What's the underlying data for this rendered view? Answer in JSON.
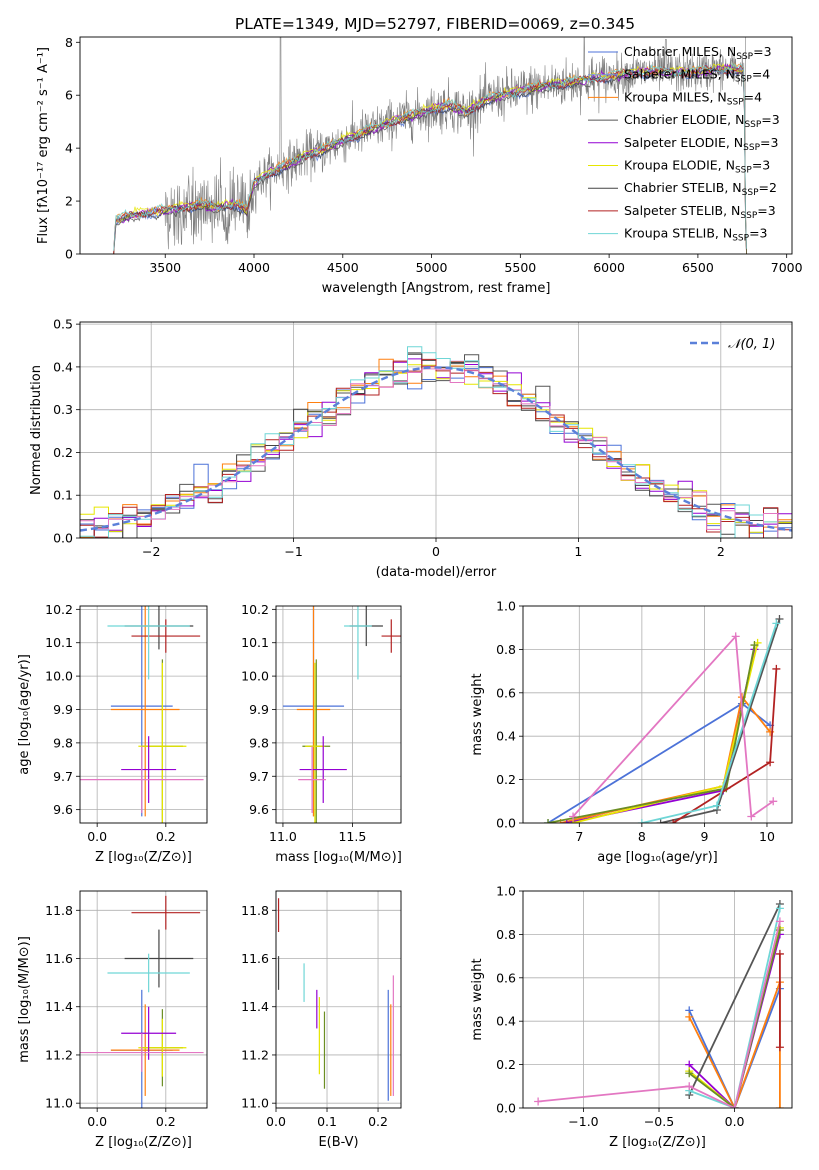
{
  "title": "PLATE=1349, MJD=52797, FIBERID=0069, z=0.345",
  "colors": {
    "chabrier_miles": "#4c72d8",
    "salpeter_miles": "#7a9ad6",
    "kroupa_miles": "#ff7f0e",
    "chabrier_elodie": "#555555",
    "salpeter_elodie": "#9400d3",
    "kroupa_elodie": "#e6e600",
    "chabrier_stelib": "#444444",
    "salpeter_stelib": "#b22222",
    "kroupa_stelib": "#6fd6d6",
    "pink": "#e377c2",
    "green": "#6b8e23",
    "orange_light": "#ffb84d",
    "data": "#808080",
    "normal": "#5b80d9"
  },
  "chart_data": [
    {
      "id": "spectrum",
      "type": "line",
      "xlabel": "wavelength [Angstrom, rest frame]",
      "ylabel": "Flux [fλ10⁻¹⁷ erg cm⁻² s⁻¹ A⁻¹]",
      "xlim": [
        3020,
        7030
      ],
      "ylim": [
        0,
        8.2
      ],
      "xticks": [
        3500,
        4000,
        4500,
        5000,
        5500,
        6000,
        6500,
        7000
      ],
      "yticks": [
        0,
        2,
        4,
        6,
        8
      ],
      "legend": [
        {
          "label": "Chabrier MILES, N",
          "sub": "SSP",
          "tail": "=3",
          "color": "#4c72d8"
        },
        {
          "label": "Salpeter MILES, N",
          "sub": "SSP",
          "tail": "=4",
          "color": "#7a9ad6"
        },
        {
          "label": "Kroupa MILES, N",
          "sub": "SSP",
          "tail": "=4",
          "color": "#ff7f0e"
        },
        {
          "label": "Chabrier ELODIE, N",
          "sub": "SSP",
          "tail": "=3",
          "color": "#555555"
        },
        {
          "label": "Salpeter ELODIE, N",
          "sub": "SSP",
          "tail": "=3",
          "color": "#9400d3"
        },
        {
          "label": "Kroupa ELODIE, N",
          "sub": "SSP",
          "tail": "=3",
          "color": "#e6e600"
        },
        {
          "label": "Chabrier STELIB, N",
          "sub": "SSP",
          "tail": "=2",
          "color": "#444444"
        },
        {
          "label": "Salpeter STELIB, N",
          "sub": "SSP",
          "tail": "=3",
          "color": "#b22222"
        },
        {
          "label": "Kroupa STELIB, N",
          "sub": "SSP",
          "tail": "=3",
          "color": "#6fd6d6"
        }
      ],
      "legend_position": "upper right",
      "continuum": [
        [
          3210,
          0
        ],
        [
          3220,
          1.25
        ],
        [
          3300,
          1.45
        ],
        [
          3400,
          1.55
        ],
        [
          3500,
          1.65
        ],
        [
          3600,
          1.75
        ],
        [
          3700,
          1.85
        ],
        [
          3800,
          1.75
        ],
        [
          3900,
          1.9
        ],
        [
          3960,
          1.6
        ],
        [
          4000,
          2.7
        ],
        [
          4100,
          3.1
        ],
        [
          4200,
          3.4
        ],
        [
          4300,
          3.75
        ],
        [
          4400,
          3.95
        ],
        [
          4500,
          4.3
        ],
        [
          4600,
          4.55
        ],
        [
          4700,
          4.8
        ],
        [
          4800,
          5.05
        ],
        [
          4900,
          5.25
        ],
        [
          5000,
          5.45
        ],
        [
          5100,
          5.6
        ],
        [
          5200,
          5.35
        ],
        [
          5300,
          5.8
        ],
        [
          5400,
          6.0
        ],
        [
          5500,
          6.15
        ],
        [
          5600,
          6.3
        ],
        [
          5700,
          6.4
        ],
        [
          5800,
          6.5
        ],
        [
          5900,
          6.6
        ],
        [
          6000,
          6.7
        ],
        [
          6100,
          6.8
        ],
        [
          6200,
          6.85
        ],
        [
          6300,
          6.9
        ],
        [
          6400,
          6.85
        ],
        [
          6500,
          6.9
        ],
        [
          6600,
          6.95
        ],
        [
          6700,
          7.0
        ],
        [
          6760,
          6.9
        ],
        [
          6770,
          0
        ]
      ]
    },
    {
      "id": "residuals",
      "type": "histogram",
      "xlabel": "(data-model)/error",
      "ylabel": "Normed distribution",
      "xlim": [
        -2.5,
        2.5
      ],
      "ylim": [
        0,
        0.505
      ],
      "xticks": [
        -2,
        -1,
        0,
        1,
        2
      ],
      "yticks": [
        0.0,
        0.1,
        0.2,
        0.3,
        0.4,
        0.5
      ],
      "bin_width": 0.1,
      "legend": [
        {
          "label": "𝒩(0, 1)",
          "color": "#5b80d9"
        }
      ],
      "legend_position": "upper right"
    },
    {
      "id": "age_vs_z",
      "type": "scatter",
      "xlabel": "Z [log₁₀(Z/Z⊙)]",
      "ylabel": "age  [log₁₀(age/yr)]",
      "xlim": [
        -0.05,
        0.32
      ],
      "ylim": [
        9.56,
        10.21
      ],
      "xticks": [
        0.0,
        0.2
      ],
      "yticks": [
        9.6,
        9.7,
        9.8,
        9.9,
        10.0,
        10.1,
        10.2
      ],
      "points": [
        {
          "x": 0.13,
          "y": 9.91,
          "xerr": 0.09,
          "yerr": 0.33,
          "color": "#4c72d8"
        },
        {
          "x": 0.14,
          "y": 9.9,
          "xerr": 0.1,
          "yerr": 0.32,
          "color": "#ff7f0e"
        },
        {
          "x": 0.19,
          "y": 9.79,
          "xerr": 0.06,
          "yerr": 0.26,
          "color": "#6b8e23"
        },
        {
          "x": 0.19,
          "y": 9.79,
          "xerr": 0.07,
          "yerr": 0.25,
          "color": "#e6e600"
        },
        {
          "x": 0.15,
          "y": 9.72,
          "xerr": 0.08,
          "yerr": 0.1,
          "color": "#9400d3"
        },
        {
          "x": 0.13,
          "y": 9.69,
          "xerr": 0.18,
          "yerr": 0.1,
          "color": "#e377c2"
        },
        {
          "x": 0.18,
          "y": 10.15,
          "xerr": 0.1,
          "yerr": 0.07,
          "color": "#444444"
        },
        {
          "x": 0.2,
          "y": 10.12,
          "xerr": 0.1,
          "yerr": 0.05,
          "color": "#b22222"
        },
        {
          "x": 0.15,
          "y": 10.15,
          "xerr": 0.12,
          "yerr": 0.16,
          "color": "#6fd6d6"
        }
      ]
    },
    {
      "id": "age_vs_mass",
      "type": "scatter",
      "xlabel": "mass [log₁₀(M/M⊙)]",
      "ylabel": "",
      "xlim": [
        10.95,
        11.85
      ],
      "ylim": [
        9.56,
        10.21
      ],
      "xticks": [
        11.0,
        11.5
      ],
      "yticks": [
        9.6,
        9.7,
        9.8,
        9.9,
        10.0,
        10.1,
        10.2
      ],
      "points": [
        {
          "x": 11.22,
          "y": 9.91,
          "xerr": 0.22,
          "yerr": 0.33,
          "color": "#4c72d8"
        },
        {
          "x": 11.22,
          "y": 9.9,
          "xerr": 0.12,
          "yerr": 0.32,
          "color": "#ff7f0e"
        },
        {
          "x": 11.24,
          "y": 9.79,
          "xerr": 0.1,
          "yerr": 0.26,
          "color": "#6b8e23"
        },
        {
          "x": 11.23,
          "y": 9.79,
          "xerr": 0.07,
          "yerr": 0.25,
          "color": "#e6e600"
        },
        {
          "x": 11.29,
          "y": 9.72,
          "xerr": 0.17,
          "yerr": 0.1,
          "color": "#9400d3"
        },
        {
          "x": 11.21,
          "y": 9.69,
          "xerr": 0.1,
          "yerr": 0.1,
          "color": "#e377c2"
        },
        {
          "x": 11.6,
          "y": 10.15,
          "xerr": 0.12,
          "yerr": 0.06,
          "color": "#444444"
        },
        {
          "x": 11.78,
          "y": 10.12,
          "xerr": 0.07,
          "yerr": 0.05,
          "color": "#b22222"
        },
        {
          "x": 11.54,
          "y": 10.15,
          "xerr": 0.1,
          "yerr": 0.16,
          "color": "#6fd6d6"
        }
      ]
    },
    {
      "id": "weight_vs_age",
      "type": "line",
      "xlabel": "age  [log₁₀(age/yr)]",
      "ylabel": "mass weight",
      "xlim": [
        6.1,
        10.4
      ],
      "ylim": [
        0,
        1.0
      ],
      "xticks": [
        7,
        8,
        9,
        10
      ],
      "yticks": [
        0.0,
        0.2,
        0.4,
        0.6,
        0.8,
        1.0
      ],
      "series": [
        {
          "color": "#4c72d8",
          "x": [
            6.5,
            9.6,
            10.05
          ],
          "y": [
            0.0,
            0.55,
            0.45
          ]
        },
        {
          "color": "#ff7f0e",
          "x": [
            6.7,
            9.3,
            9.6,
            10.05
          ],
          "y": [
            0.0,
            0.17,
            0.58,
            0.42
          ]
        },
        {
          "color": "#9400d3",
          "x": [
            6.8,
            9.3,
            9.8
          ],
          "y": [
            0.0,
            0.15,
            0.8
          ]
        },
        {
          "color": "#e6e600",
          "x": [
            6.9,
            9.3,
            9.85
          ],
          "y": [
            0.0,
            0.17,
            0.83
          ]
        },
        {
          "color": "#6b8e23",
          "x": [
            6.5,
            9.35,
            9.8
          ],
          "y": [
            0.0,
            0.16,
            0.82
          ]
        },
        {
          "color": "#555555",
          "x": [
            8.3,
            9.2,
            10.2
          ],
          "y": [
            0.0,
            0.06,
            0.94
          ]
        },
        {
          "color": "#b22222",
          "x": [
            8.5,
            10.05,
            10.15
          ],
          "y": [
            0.0,
            0.28,
            0.71
          ]
        },
        {
          "color": "#6fd6d6",
          "x": [
            8.0,
            9.2,
            10.15
          ],
          "y": [
            0.0,
            0.08,
            0.92
          ]
        },
        {
          "color": "#e377c2",
          "x": [
            6.9,
            9.5,
            9.75,
            10.1
          ],
          "y": [
            0.03,
            0.86,
            0.03,
            0.1
          ]
        }
      ]
    },
    {
      "id": "mass_vs_z",
      "type": "scatter",
      "xlabel": "Z [log₁₀(Z/Z⊙)]",
      "ylabel": "mass [log₁₀(M/M⊙)]",
      "xlim": [
        -0.05,
        0.32
      ],
      "ylim": [
        10.98,
        11.88
      ],
      "xticks": [
        0.0,
        0.2
      ],
      "yticks": [
        11.0,
        11.2,
        11.4,
        11.6,
        11.8
      ],
      "points": [
        {
          "x": 0.13,
          "y": 11.22,
          "xerr": 0.09,
          "yerr": 0.25,
          "color": "#4c72d8"
        },
        {
          "x": 0.14,
          "y": 11.22,
          "xerr": 0.1,
          "yerr": 0.19,
          "color": "#ff7f0e"
        },
        {
          "x": 0.19,
          "y": 11.23,
          "xerr": 0.06,
          "yerr": 0.16,
          "color": "#6b8e23"
        },
        {
          "x": 0.19,
          "y": 11.23,
          "xerr": 0.07,
          "yerr": 0.12,
          "color": "#e6e600"
        },
        {
          "x": 0.15,
          "y": 11.29,
          "xerr": 0.08,
          "yerr": 0.11,
          "color": "#9400d3"
        },
        {
          "x": 0.13,
          "y": 11.21,
          "xerr": 0.18,
          "yerr": 0.08,
          "color": "#e377c2"
        },
        {
          "x": 0.18,
          "y": 11.6,
          "xerr": 0.1,
          "yerr": 0.12,
          "color": "#444444"
        },
        {
          "x": 0.2,
          "y": 11.79,
          "xerr": 0.1,
          "yerr": 0.07,
          "color": "#b22222"
        },
        {
          "x": 0.15,
          "y": 11.54,
          "xerr": 0.12,
          "yerr": 0.08,
          "color": "#6fd6d6"
        }
      ]
    },
    {
      "id": "mass_vs_ebv",
      "type": "scatter",
      "xlabel": "E(B-V)",
      "ylabel": "",
      "xlim": [
        0.0,
        0.245
      ],
      "ylim": [
        10.98,
        11.88
      ],
      "xticks": [
        0.0,
        0.1,
        0.2
      ],
      "yticks": [
        11.0,
        11.2,
        11.4,
        11.6,
        11.8
      ],
      "points": [
        {
          "x": 0.005,
          "y": 11.78,
          "xerr": 0,
          "yerr": 0.07,
          "color": "#b22222"
        },
        {
          "x": 0.005,
          "y": 11.54,
          "xerr": 0,
          "yerr": 0.07,
          "color": "#444444"
        },
        {
          "x": 0.055,
          "y": 11.5,
          "xerr": 0,
          "yerr": 0.08,
          "color": "#6fd6d6"
        },
        {
          "x": 0.08,
          "y": 11.39,
          "xerr": 0,
          "yerr": 0.08,
          "color": "#9400d3"
        },
        {
          "x": 0.085,
          "y": 11.28,
          "xerr": 0,
          "yerr": 0.16,
          "color": "#e6e600"
        },
        {
          "x": 0.095,
          "y": 11.22,
          "xerr": 0,
          "yerr": 0.16,
          "color": "#6b8e23"
        },
        {
          "x": 0.22,
          "y": 11.24,
          "xerr": 0,
          "yerr": 0.23,
          "color": "#4c72d8"
        },
        {
          "x": 0.225,
          "y": 11.22,
          "xerr": 0,
          "yerr": 0.19,
          "color": "#ff7f0e"
        },
        {
          "x": 0.23,
          "y": 11.28,
          "xerr": 0,
          "yerr": 0.25,
          "color": "#e377c2"
        }
      ]
    },
    {
      "id": "weight_vs_z",
      "type": "line",
      "xlabel": "Z [log₁₀(Z/Z⊙)]",
      "ylabel": "mass weight",
      "xlim": [
        -1.4,
        0.38
      ],
      "ylim": [
        0,
        1.0
      ],
      "xticks": [
        -1.0,
        -0.5,
        0.0
      ],
      "yticks": [
        0.0,
        0.2,
        0.4,
        0.6,
        0.8,
        1.0
      ],
      "series": [
        {
          "color": "#4c72d8",
          "x": [
            -0.3,
            0.0,
            0.3
          ],
          "y": [
            0.45,
            0.0,
            0.55
          ]
        },
        {
          "color": "#ff7f0e",
          "x": [
            -0.3,
            0.0,
            0.3,
            0.3
          ],
          "y": [
            0.42,
            0.0,
            0.58,
            0.0
          ]
        },
        {
          "color": "#9400d3",
          "x": [
            -0.3,
            0.0,
            0.3
          ],
          "y": [
            0.2,
            0.0,
            0.8
          ]
        },
        {
          "color": "#e6e600",
          "x": [
            -0.3,
            0.0,
            0.3
          ],
          "y": [
            0.17,
            0.0,
            0.83
          ]
        },
        {
          "color": "#6b8e23",
          "x": [
            -0.3,
            0.0,
            0.3
          ],
          "y": [
            0.16,
            0.0,
            0.82
          ]
        },
        {
          "color": "#555555",
          "x": [
            -0.3,
            0.3
          ],
          "y": [
            0.06,
            0.94
          ]
        },
        {
          "color": "#b22222",
          "x": [
            0.3,
            0.3
          ],
          "y": [
            0.28,
            0.71
          ]
        },
        {
          "color": "#6fd6d6",
          "x": [
            -0.3,
            0.0,
            0.3
          ],
          "y": [
            0.08,
            0.0,
            0.92
          ]
        },
        {
          "color": "#e377c2",
          "x": [
            -1.3,
            -0.3,
            0.0,
            0.3
          ],
          "y": [
            0.03,
            0.1,
            0.0,
            0.86
          ]
        }
      ]
    }
  ]
}
